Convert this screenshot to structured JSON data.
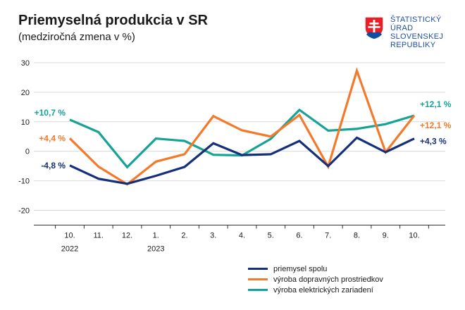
{
  "header": {
    "title": "Priemyselná produkcia v SR",
    "subtitle": "(medziročná zmena v %)"
  },
  "logo": {
    "lines": [
      "ŠTATISTICKÝ",
      "ÚRAD",
      "SLOVENSKEJ",
      "REPUBLIKY"
    ],
    "icon": "slovak-coat-of-arms-icon"
  },
  "colors": {
    "series_1": "#162f7a",
    "series_2": "#f4792a",
    "series_3": "#16a396",
    "grid": "#d9d9d9",
    "axis": "#333333"
  },
  "chart_data": {
    "type": "line",
    "title": "Priemyselná produkcia v SR",
    "subtitle": "(medziročná zmena v %)",
    "categories": [
      "10.",
      "11.",
      "12.",
      "1.",
      "2.",
      "3.",
      "4.",
      "5.",
      "6.",
      "7.",
      "8.",
      "9.",
      "10."
    ],
    "year_labels": [
      {
        "index": 0,
        "label": "2022"
      },
      {
        "index": 3,
        "label": "2023"
      }
    ],
    "ylim": [
      -25,
      30
    ],
    "yticks": [
      30,
      20,
      10,
      0,
      -10,
      -20
    ],
    "grid": true,
    "legend_position": "bottom-right",
    "series": [
      {
        "name": "priemysel spolu",
        "values": [
          -4.8,
          -9.3,
          -11.0,
          -8.3,
          -5.3,
          2.7,
          -1.3,
          -1.0,
          3.5,
          -5.0,
          4.6,
          -0.3,
          4.3
        ]
      },
      {
        "name": "výroba dopravných prostriedkov",
        "values": [
          4.4,
          -5.2,
          -11.2,
          -3.5,
          -1.0,
          11.9,
          7.1,
          5.0,
          12.3,
          -5.2,
          27.3,
          -0.3,
          12.1
        ]
      },
      {
        "name": "výroba elektrických zariadení",
        "values": [
          10.7,
          6.5,
          -5.4,
          4.3,
          3.5,
          -1.2,
          -1.4,
          4.2,
          14.0,
          7.0,
          7.6,
          9.2,
          12.1
        ]
      }
    ],
    "annotations": [
      {
        "series": 0,
        "point": "first",
        "text": "-4,8 %"
      },
      {
        "series": 1,
        "point": "first",
        "text": "+4,4 %"
      },
      {
        "series": 2,
        "point": "first",
        "text": "+10,7 %"
      },
      {
        "series": 0,
        "point": "last",
        "text": "+4,3 %"
      },
      {
        "series": 1,
        "point": "last",
        "text": "+12,1 %"
      },
      {
        "series": 2,
        "point": "last",
        "text": "+12,1 %"
      }
    ]
  }
}
